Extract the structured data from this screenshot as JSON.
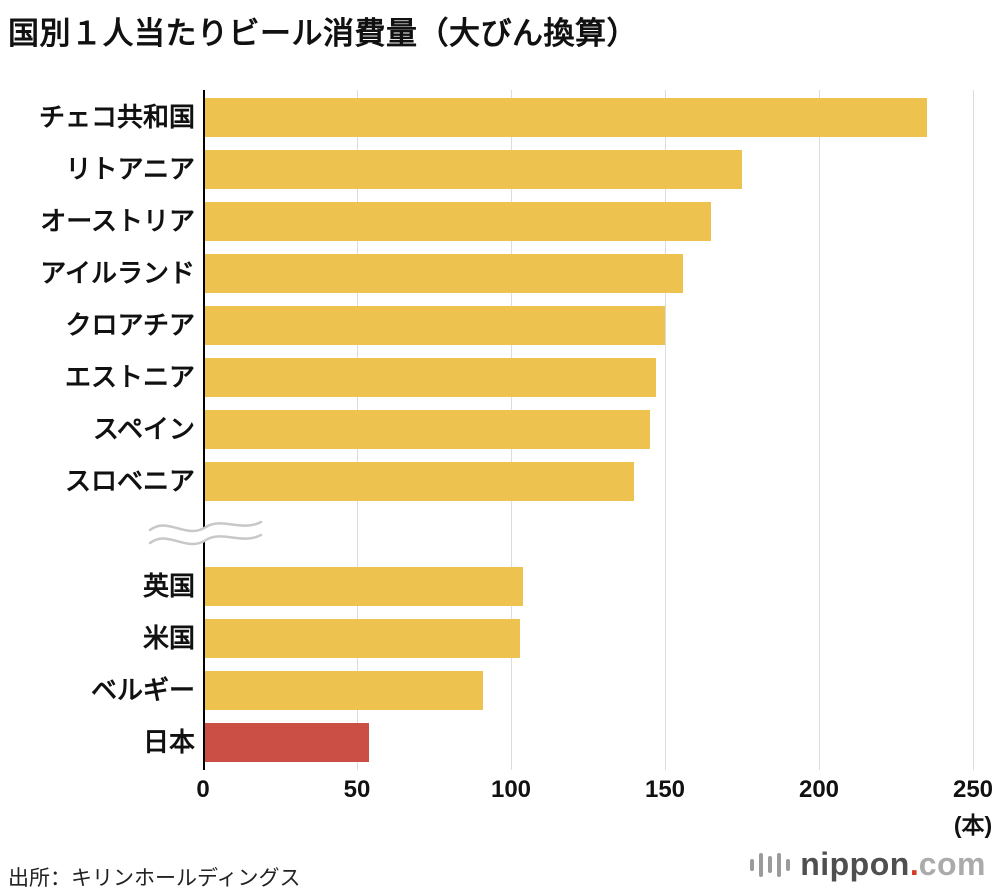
{
  "page": {
    "title": "国別１人当たりビール消費量（大びん換算）",
    "source": "出所：キリンホールディングス",
    "logo": {
      "name": "nippon",
      "dot": ".",
      "tld": "com"
    }
  },
  "chart_data": {
    "type": "bar",
    "orientation": "horizontal",
    "title": "国別１人当たりビール消費量（大びん換算）",
    "unit_label": "(本)",
    "xlabel": "",
    "ylabel": "",
    "xlim": [
      0,
      250
    ],
    "xticks": [
      0,
      50,
      100,
      150,
      200,
      250
    ],
    "grid": true,
    "axis_break_between_groups": true,
    "bar_color": "#eec24e",
    "highlight_color": "#cc4f45",
    "groups": [
      {
        "rows": [
          {
            "label": "チェコ共和国",
            "value": 235
          },
          {
            "label": "リトアニア",
            "value": 175
          },
          {
            "label": "オーストリア",
            "value": 165
          },
          {
            "label": "アイルランド",
            "value": 156
          },
          {
            "label": "クロアチア",
            "value": 150
          },
          {
            "label": "エストニア",
            "value": 147
          },
          {
            "label": "スペイン",
            "value": 145
          },
          {
            "label": "スロベニア",
            "value": 140
          }
        ]
      },
      {
        "rows": [
          {
            "label": "英国",
            "value": 104
          },
          {
            "label": "米国",
            "value": 103
          },
          {
            "label": "ベルギー",
            "value": 91
          },
          {
            "label": "日本",
            "value": 54,
            "highlight": true
          }
        ]
      }
    ]
  }
}
